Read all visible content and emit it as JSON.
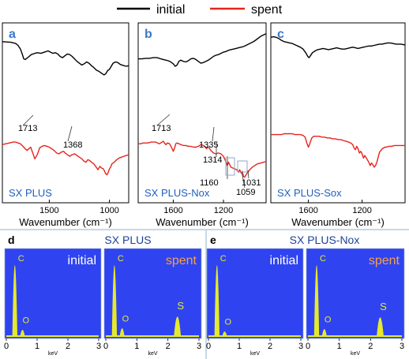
{
  "legend": {
    "initial_label": "initial",
    "spent_label": "spent",
    "initial_color": "#000000",
    "spent_color": "#e8231e"
  },
  "colors": {
    "panel_letter": "#3a78c9",
    "sample_label": "#1f5fbf",
    "annotation_box": "#8fa9c9",
    "divider": "#8fb0cc",
    "eds_bg": "#2f44f0",
    "eds_peak": "#e6ea2a",
    "eds_initial_text": "#ffffff",
    "eds_spent_text": "#f5a04b",
    "eds_title": "#1f3f99"
  },
  "chart_data": [
    {
      "type": "line",
      "panel": "a",
      "sample": "SX PLUS",
      "xlabel": "Wavenumber (cm⁻¹)",
      "xlim": [
        1890,
        840
      ],
      "x_ticks": [
        "1500",
        "1000"
      ],
      "x_tick_values": [
        1500,
        1000
      ],
      "ylim": [
        0,
        1
      ],
      "y_axis_labels": false,
      "annotations": [
        {
          "text": "1713",
          "x": 1713
        },
        {
          "text": "1368",
          "x": 1368
        }
      ],
      "series": [
        {
          "name": "initial",
          "x": [
            1890,
            1820,
            1780,
            1760,
            1740,
            1725,
            1712,
            1700,
            1680,
            1650,
            1620,
            1600,
            1570,
            1540,
            1510,
            1490,
            1470,
            1450,
            1430,
            1410,
            1390,
            1370,
            1350,
            1330,
            1310,
            1290,
            1270,
            1250,
            1230,
            1210,
            1190,
            1170,
            1150,
            1130,
            1110,
            1090,
            1075,
            1060,
            1045,
            1030,
            1015,
            1000,
            985,
            970,
            950,
            930,
            910,
            880,
            860,
            840
          ],
          "y": [
            0.9,
            0.89,
            0.87,
            0.84,
            0.78,
            0.7,
            0.62,
            0.61,
            0.64,
            0.69,
            0.71,
            0.72,
            0.71,
            0.73,
            0.75,
            0.73,
            0.71,
            0.72,
            0.7,
            0.66,
            0.64,
            0.67,
            0.7,
            0.69,
            0.66,
            0.62,
            0.58,
            0.55,
            0.52,
            0.54,
            0.57,
            0.55,
            0.51,
            0.48,
            0.44,
            0.42,
            0.4,
            0.38,
            0.36,
            0.38,
            0.43,
            0.45,
            0.5,
            0.55,
            0.57,
            0.56,
            0.53,
            0.51,
            0.5,
            0.51
          ]
        },
        {
          "name": "spent",
          "x": [
            1890,
            1860,
            1830,
            1800,
            1780,
            1760,
            1740,
            1725,
            1712,
            1700,
            1685,
            1670,
            1655,
            1640,
            1620,
            1600,
            1580,
            1560,
            1540,
            1520,
            1500,
            1480,
            1460,
            1440,
            1420,
            1400,
            1380,
            1368,
            1350,
            1330,
            1310,
            1290,
            1270,
            1250,
            1230,
            1210,
            1195,
            1180,
            1165,
            1150,
            1130,
            1110,
            1095,
            1080,
            1065,
            1050,
            1040,
            1030,
            1020,
            1010,
            1000,
            990,
            980,
            960,
            940,
            920,
            900,
            880,
            860,
            840
          ],
          "y": [
            0.45,
            0.46,
            0.47,
            0.48,
            0.48,
            0.47,
            0.46,
            0.44,
            0.42,
            0.4,
            0.38,
            0.4,
            0.42,
            0.36,
            0.28,
            0.33,
            0.41,
            0.43,
            0.44,
            0.43,
            0.42,
            0.4,
            0.38,
            0.35,
            0.34,
            0.36,
            0.37,
            0.35,
            0.33,
            0.31,
            0.33,
            0.34,
            0.32,
            0.3,
            0.28,
            0.25,
            0.24,
            0.27,
            0.26,
            0.24,
            0.22,
            0.18,
            0.15,
            0.19,
            0.17,
            0.16,
            0.13,
            0.1,
            0.09,
            0.12,
            0.16,
            0.18,
            0.22,
            0.24,
            0.27,
            0.29,
            0.3,
            0.31,
            0.32,
            0.33
          ]
        }
      ]
    },
    {
      "type": "line",
      "panel": "b",
      "sample": "SX PLUS-Nox",
      "xlabel": "Wavenumber (cm⁻¹)",
      "xlim": [
        1880,
        860
      ],
      "x_ticks": [
        "1600",
        "1200"
      ],
      "x_tick_values": [
        1600,
        1200
      ],
      "ylim": [
        0,
        1
      ],
      "y_axis_labels": false,
      "annotations": [
        {
          "text": "1713",
          "x": 1713
        },
        {
          "text": "1335",
          "x": 1335
        },
        {
          "text": "1314",
          "x": 1314
        },
        {
          "text": "1160",
          "x": 1160
        },
        {
          "text": "1059",
          "x": 1059
        },
        {
          "text": "1031",
          "x": 1031
        }
      ],
      "series": [
        {
          "name": "initial",
          "x": [
            1880,
            1850,
            1820,
            1790,
            1760,
            1730,
            1712,
            1700,
            1680,
            1660,
            1640,
            1620,
            1600,
            1585,
            1570,
            1555,
            1540,
            1520,
            1500,
            1480,
            1460,
            1440,
            1420,
            1400,
            1380,
            1360,
            1340,
            1320,
            1300,
            1280,
            1260,
            1240,
            1220,
            1200,
            1180,
            1160,
            1140,
            1120,
            1100,
            1080,
            1060,
            1040,
            1020,
            1000,
            980,
            960,
            940,
            920,
            900,
            880,
            860
          ],
          "y": [
            0.62,
            0.62,
            0.63,
            0.63,
            0.64,
            0.64,
            0.63,
            0.62,
            0.61,
            0.6,
            0.59,
            0.57,
            0.54,
            0.5,
            0.52,
            0.58,
            0.6,
            0.58,
            0.57,
            0.59,
            0.62,
            0.63,
            0.61,
            0.58,
            0.55,
            0.56,
            0.58,
            0.6,
            0.63,
            0.66,
            0.68,
            0.69,
            0.71,
            0.73,
            0.74,
            0.76,
            0.77,
            0.78,
            0.79,
            0.8,
            0.81,
            0.82,
            0.84,
            0.86,
            0.88,
            0.9,
            0.93,
            0.96,
            0.99,
            1.01,
            1.03
          ]
        },
        {
          "name": "spent",
          "x": [
            1880,
            1860,
            1840,
            1820,
            1800,
            1780,
            1760,
            1740,
            1725,
            1712,
            1700,
            1690,
            1680,
            1670,
            1660,
            1645,
            1630,
            1615,
            1600,
            1590,
            1580,
            1570,
            1555,
            1540,
            1520,
            1500,
            1480,
            1460,
            1440,
            1420,
            1400,
            1380,
            1360,
            1345,
            1335,
            1325,
            1314,
            1300,
            1280,
            1260,
            1240,
            1220,
            1200,
            1185,
            1170,
            1160,
            1150,
            1140,
            1125,
            1110,
            1095,
            1080,
            1070,
            1059,
            1050,
            1040,
            1031,
            1020,
            1005,
            990,
            970,
            950,
            930,
            900,
            880,
            860
          ],
          "y": [
            0.46,
            0.46,
            0.47,
            0.47,
            0.47,
            0.48,
            0.48,
            0.48,
            0.47,
            0.46,
            0.47,
            0.48,
            0.49,
            0.47,
            0.45,
            0.47,
            0.46,
            0.42,
            0.37,
            0.41,
            0.46,
            0.47,
            0.46,
            0.45,
            0.44,
            0.44,
            0.43,
            0.43,
            0.42,
            0.42,
            0.43,
            0.45,
            0.44,
            0.42,
            0.4,
            0.42,
            0.41,
            0.38,
            0.35,
            0.34,
            0.35,
            0.34,
            0.31,
            0.26,
            0.2,
            0.24,
            0.21,
            0.18,
            0.17,
            0.16,
            0.15,
            0.12,
            0.15,
            0.11,
            0.13,
            0.07,
            0.06,
            0.09,
            0.12,
            0.15,
            0.18,
            0.2,
            0.22,
            0.23,
            0.24,
            0.25
          ]
        }
      ]
    },
    {
      "type": "line",
      "panel": "c",
      "sample": "SX PLUS-Sox",
      "xlabel": "Wavenumber (cm⁻¹)",
      "xlim": [
        1880,
        880
      ],
      "x_ticks": [
        "1600",
        "1200"
      ],
      "x_tick_values": [
        1600,
        1200
      ],
      "ylim": [
        0,
        1
      ],
      "y_axis_labels": false,
      "series": [
        {
          "name": "initial",
          "x": [
            1880,
            1860,
            1840,
            1820,
            1800,
            1780,
            1760,
            1740,
            1720,
            1700,
            1680,
            1660,
            1640,
            1620,
            1605,
            1595,
            1585,
            1570,
            1550,
            1530,
            1510,
            1490,
            1470,
            1450,
            1430,
            1410,
            1390,
            1370,
            1350,
            1330,
            1310,
            1290,
            1270,
            1250,
            1230,
            1210,
            1190,
            1170,
            1150,
            1130,
            1110,
            1090,
            1070,
            1050,
            1030,
            1010,
            990,
            970,
            950,
            930,
            910,
            890,
            880
          ],
          "y": [
            0.97,
            0.98,
            0.97,
            0.95,
            0.92,
            0.9,
            0.89,
            0.88,
            0.87,
            0.85,
            0.83,
            0.81,
            0.78,
            0.72,
            0.66,
            0.64,
            0.67,
            0.72,
            0.75,
            0.77,
            0.78,
            0.79,
            0.78,
            0.77,
            0.78,
            0.79,
            0.8,
            0.79,
            0.78,
            0.78,
            0.79,
            0.8,
            0.81,
            0.8,
            0.79,
            0.8,
            0.81,
            0.82,
            0.83,
            0.83,
            0.84,
            0.85,
            0.86,
            0.86,
            0.87,
            0.88,
            0.88,
            0.87,
            0.86,
            0.86,
            0.86,
            0.85,
            0.85
          ]
        },
        {
          "name": "spent",
          "x": [
            1880,
            1860,
            1840,
            1820,
            1800,
            1780,
            1760,
            1740,
            1720,
            1700,
            1680,
            1660,
            1640,
            1625,
            1612,
            1600,
            1590,
            1575,
            1560,
            1540,
            1520,
            1500,
            1480,
            1460,
            1440,
            1420,
            1400,
            1380,
            1360,
            1340,
            1320,
            1300,
            1285,
            1270,
            1260,
            1250,
            1240,
            1230,
            1220,
            1210,
            1200,
            1190,
            1180,
            1165,
            1150,
            1140,
            1130,
            1120,
            1110,
            1100,
            1090,
            1080,
            1070,
            1060,
            1050,
            1040,
            1030,
            1020,
            1000,
            980,
            960,
            940,
            920,
            900,
            880
          ],
          "y": [
            0.57,
            0.57,
            0.57,
            0.57,
            0.57,
            0.58,
            0.58,
            0.58,
            0.58,
            0.57,
            0.57,
            0.57,
            0.56,
            0.54,
            0.47,
            0.42,
            0.46,
            0.53,
            0.55,
            0.55,
            0.55,
            0.54,
            0.54,
            0.53,
            0.53,
            0.52,
            0.52,
            0.51,
            0.51,
            0.5,
            0.49,
            0.48,
            0.47,
            0.45,
            0.41,
            0.39,
            0.43,
            0.4,
            0.35,
            0.37,
            0.34,
            0.29,
            0.32,
            0.28,
            0.24,
            0.2,
            0.23,
            0.21,
            0.18,
            0.2,
            0.24,
            0.3,
            0.36,
            0.38,
            0.4,
            0.41,
            0.42,
            0.42,
            0.43,
            0.43,
            0.44,
            0.44,
            0.44,
            0.44,
            0.44
          ]
        }
      ]
    },
    {
      "type": "bar",
      "panel": "d",
      "sample": "SX PLUS",
      "spectra": [
        {
          "name": "initial",
          "xlabel": "keV",
          "xlim": [
            0,
            3
          ],
          "x_ticks": [
            "0",
            "1",
            "2",
            "3"
          ],
          "peaks": [
            {
              "element": "C",
              "energy": 0.277,
              "height": 0.92
            },
            {
              "element": "O",
              "energy": 0.525,
              "height": 0.09
            }
          ]
        },
        {
          "name": "spent",
          "xlabel": "keV",
          "xlim": [
            0,
            3
          ],
          "x_ticks": [
            "0",
            "1",
            "2",
            "3"
          ],
          "peaks": [
            {
              "element": "C",
              "energy": 0.277,
              "height": 0.92
            },
            {
              "element": "O",
              "energy": 0.525,
              "height": 0.11
            },
            {
              "element": "S",
              "energy": 2.307,
              "height": 0.26
            }
          ]
        }
      ]
    },
    {
      "type": "bar",
      "panel": "e",
      "sample": "SX PLUS-Nox",
      "spectra": [
        {
          "name": "initial",
          "xlabel": "keV",
          "xlim": [
            0,
            3
          ],
          "x_ticks": [
            "0",
            "1",
            "2",
            "3"
          ],
          "peaks": [
            {
              "element": "C",
              "energy": 0.277,
              "height": 0.92
            },
            {
              "element": "O",
              "energy": 0.525,
              "height": 0.07
            }
          ]
        },
        {
          "name": "spent",
          "xlabel": "keV",
          "xlim": [
            0,
            3
          ],
          "x_ticks": [
            "0",
            "1",
            "2",
            "3"
          ],
          "peaks": [
            {
              "element": "C",
              "energy": 0.277,
              "height": 0.92
            },
            {
              "element": "O",
              "energy": 0.525,
              "height": 0.1
            },
            {
              "element": "S",
              "energy": 2.307,
              "height": 0.25
            }
          ]
        }
      ]
    }
  ]
}
